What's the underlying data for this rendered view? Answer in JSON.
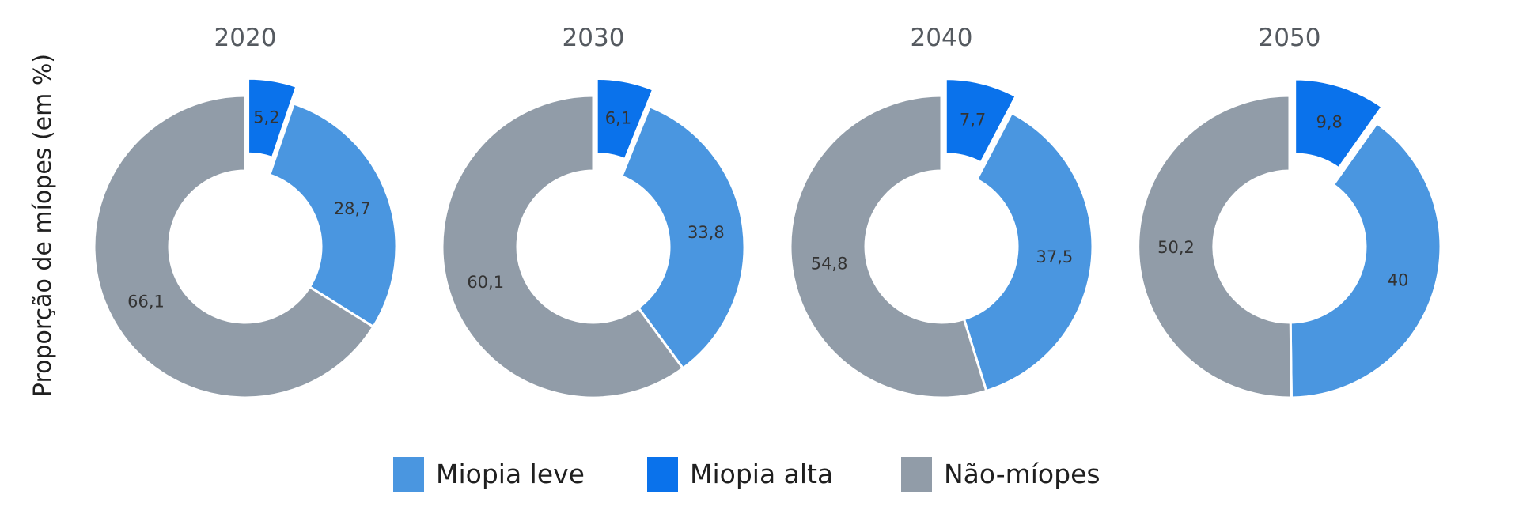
{
  "chart_data": {
    "type": "pie",
    "variant": "donut",
    "ylabel": "Proporção de míopes (em %)",
    "categories": [
      "2020",
      "2030",
      "2040",
      "2050"
    ],
    "series": [
      {
        "name": "Miopia leve",
        "values": [
          28.7,
          33.8,
          37.5,
          40
        ],
        "labels": [
          "28,7",
          "33,8",
          "37,5",
          "40"
        ],
        "color": "#4a96e0"
      },
      {
        "name": "Miopia alta",
        "values": [
          5.2,
          6.1,
          7.7,
          9.8
        ],
        "labels": [
          "5,2",
          "6,1",
          "7,7",
          "9,8"
        ],
        "color": "#0a72eb"
      },
      {
        "name": "Não-míopes",
        "values": [
          66.1,
          60.1,
          54.8,
          50.2
        ],
        "labels": [
          "66,1",
          "60,1",
          "54,8",
          "50,2"
        ],
        "color": "#919ca8"
      }
    ],
    "exploded_series": "Miopia alta",
    "legend_position": "bottom"
  }
}
